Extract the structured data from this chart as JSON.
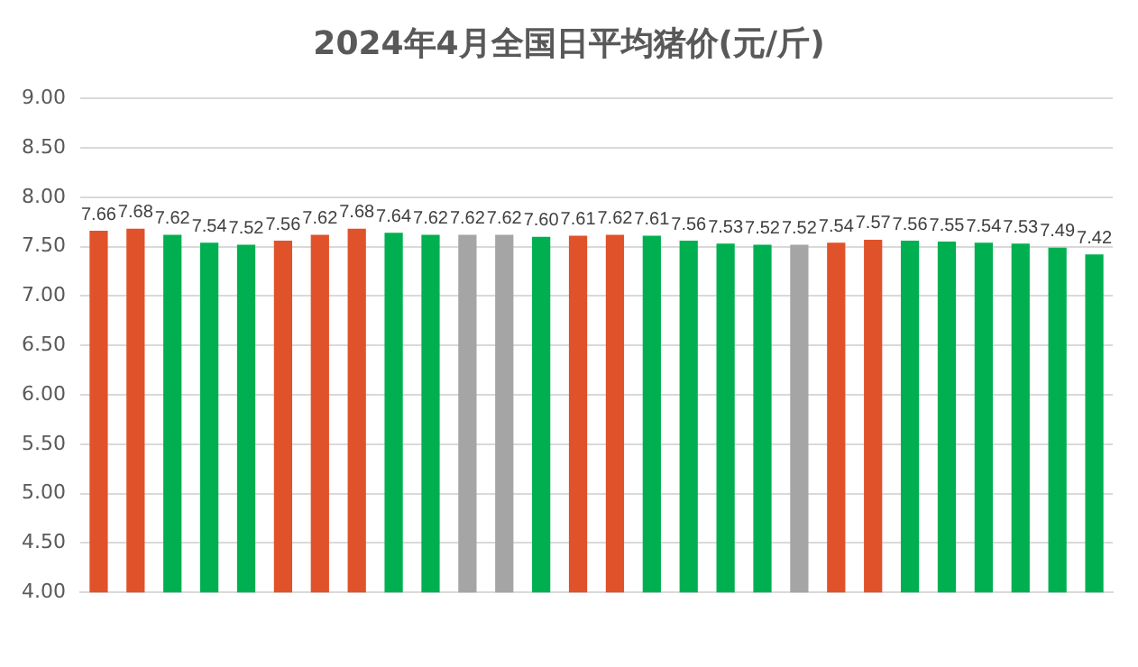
{
  "chart_data": {
    "type": "bar",
    "title": "2024年4月全国日平均猪价(元/斤)",
    "categories": [
      null,
      null,
      null,
      null,
      null,
      null,
      null,
      null,
      null,
      null,
      null,
      null,
      null,
      null,
      null,
      null,
      null,
      null,
      null,
      null,
      null,
      null,
      null,
      null,
      null,
      null,
      null,
      null
    ],
    "values": [
      7.66,
      7.68,
      7.62,
      7.54,
      7.52,
      7.56,
      7.62,
      7.68,
      7.64,
      7.62,
      7.62,
      7.62,
      7.6,
      7.61,
      7.62,
      7.61,
      7.56,
      7.53,
      7.52,
      7.52,
      7.54,
      7.57,
      7.56,
      7.55,
      7.54,
      7.53,
      7.49,
      7.42
    ],
    "value_labels": [
      "7.66",
      "7.68",
      "7.62",
      "7.54",
      "7.52",
      "7.56",
      "7.62",
      "7.68",
      "7.64",
      "7.62",
      "7.62",
      "7.62",
      "7.60",
      "7.61",
      "7.62",
      "7.61",
      "7.56",
      "7.53",
      "7.52",
      "7.52",
      "7.54",
      "7.57",
      "7.56",
      "7.55",
      "7.54",
      "7.53",
      "7.49",
      "7.42"
    ],
    "colors": [
      "#e0522a",
      "#e0522a",
      "#00b050",
      "#00b050",
      "#00b050",
      "#e0522a",
      "#e0522a",
      "#e0522a",
      "#00b050",
      "#00b050",
      "#a5a5a5",
      "#a5a5a5",
      "#00b050",
      "#e0522a",
      "#e0522a",
      "#00b050",
      "#00b050",
      "#00b050",
      "#00b050",
      "#a5a5a5",
      "#e0522a",
      "#e0522a",
      "#00b050",
      "#00b050",
      "#00b050",
      "#00b050",
      "#00b050",
      "#00b050"
    ],
    "ylim": [
      4,
      9
    ],
    "yticks": [
      {
        "value": 4,
        "label": "4.00"
      },
      {
        "value": 4.5,
        "label": "4.50"
      },
      {
        "value": 5,
        "label": "5.00"
      },
      {
        "value": 5.5,
        "label": "5.50"
      },
      {
        "value": 6,
        "label": "6.00"
      },
      {
        "value": 6.5,
        "label": "6.50"
      },
      {
        "value": 7,
        "label": "7.00"
      },
      {
        "value": 7.5,
        "label": "7.50"
      },
      {
        "value": 8,
        "label": "8.00"
      },
      {
        "value": 8.5,
        "label": "8.50"
      },
      {
        "value": 9,
        "label": "9.00"
      }
    ],
    "grid": "y",
    "legend": false
  }
}
